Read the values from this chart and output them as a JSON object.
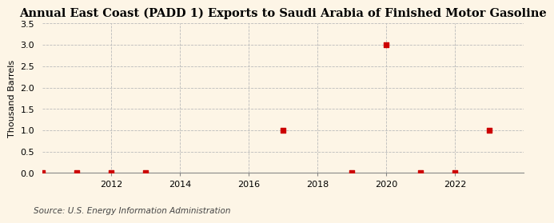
{
  "title": "Annual East Coast (PADD 1) Exports to Saudi Arabia of Finished Motor Gasoline",
  "ylabel": "Thousand Barrels",
  "source": "Source: U.S. Energy Information Administration",
  "x_data": [
    2010,
    2011,
    2012,
    2013,
    2017,
    2019,
    2020,
    2021,
    2022,
    2023
  ],
  "y_data": [
    0.0,
    0.0,
    0.0,
    0.0,
    1.0,
    0.0,
    3.0,
    0.0,
    0.0,
    1.0
  ],
  "xlim": [
    2010.0,
    2024.0
  ],
  "ylim": [
    0.0,
    3.5
  ],
  "yticks": [
    0.0,
    0.5,
    1.0,
    1.5,
    2.0,
    2.5,
    3.0,
    3.5
  ],
  "xticks": [
    2012,
    2014,
    2016,
    2018,
    2020,
    2022
  ],
  "marker_color": "#cc0000",
  "marker_size": 4,
  "marker_style": "s",
  "grid_color": "#bbbbbb",
  "grid_linestyle": "--",
  "background_color": "#fdf5e6",
  "title_fontsize": 10.5,
  "label_fontsize": 8,
  "tick_fontsize": 8,
  "source_fontsize": 7.5
}
